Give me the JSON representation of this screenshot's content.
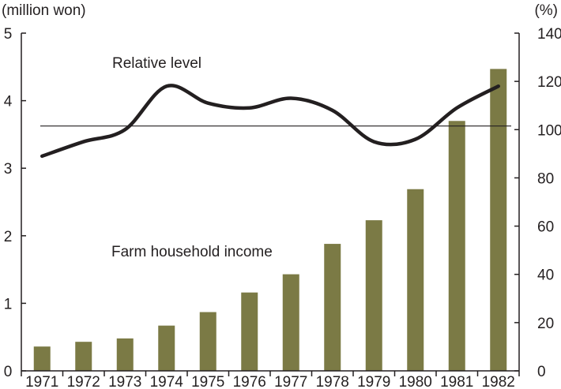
{
  "chart_data": {
    "type": "bar",
    "title": "",
    "left_axis_unit": "(million won)",
    "right_axis_unit": "(%)",
    "categories": [
      "1971",
      "1972",
      "1973",
      "1974",
      "1975",
      "1976",
      "1977",
      "1978",
      "1979",
      "1980",
      "1981",
      "1982"
    ],
    "ylim_left": [
      0,
      5
    ],
    "ylim_right": [
      0,
      140
    ],
    "left_ticks": [
      "0",
      "1",
      "2",
      "3",
      "4",
      "5"
    ],
    "right_ticks": [
      "0",
      "20",
      "40",
      "60",
      "80",
      "100",
      "120",
      "140"
    ],
    "series": [
      {
        "name": "Farm household income",
        "kind": "bar",
        "axis": "left",
        "color": "#7b7a45",
        "values": [
          0.36,
          0.43,
          0.48,
          0.67,
          0.87,
          1.16,
          1.43,
          1.88,
          2.23,
          2.69,
          3.7,
          4.47
        ]
      },
      {
        "name": "Relative level",
        "kind": "line",
        "axis": "right",
        "color": "#231f20",
        "values": [
          89,
          95,
          100,
          118,
          111,
          109,
          113,
          108,
          95,
          96,
          109,
          118
        ]
      }
    ],
    "reference_line": {
      "axis": "right",
      "value": 101.5
    },
    "grid": false,
    "legend": "none"
  }
}
